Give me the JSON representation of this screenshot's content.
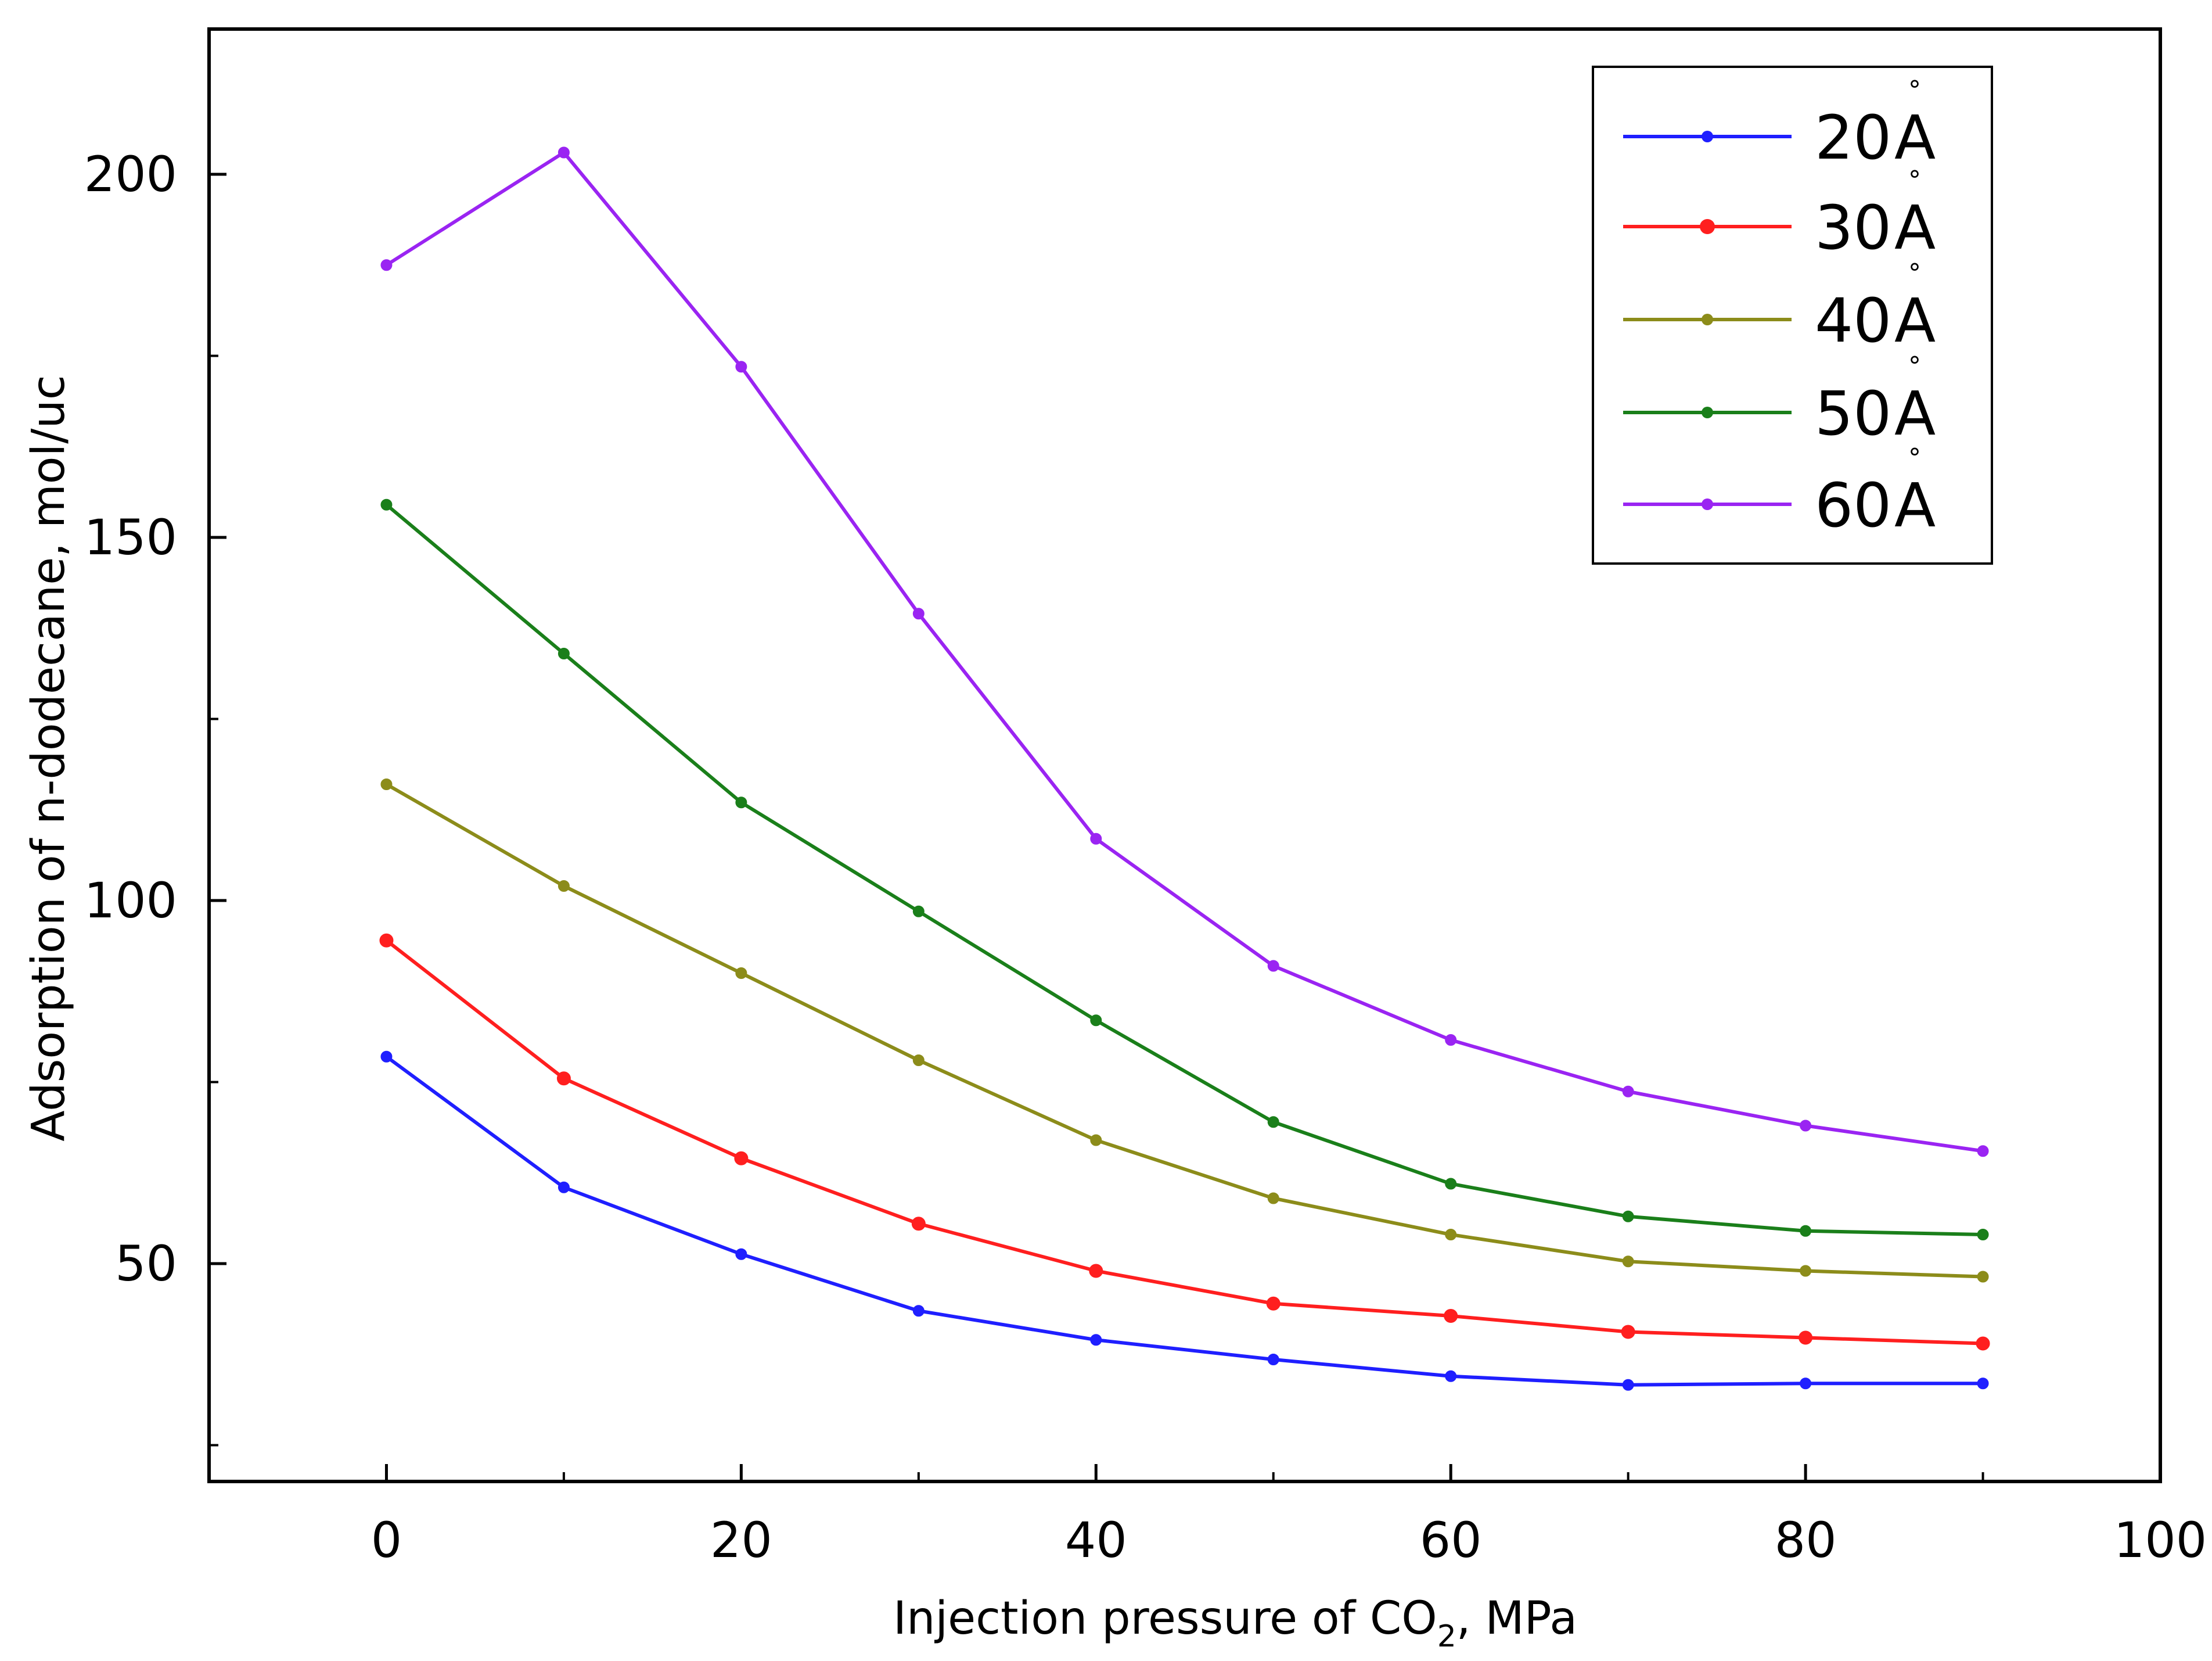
{
  "chart_data": {
    "type": "line",
    "title": "",
    "xlabel": "Injection pressure of CO",
    "xlabel_subscript": "2",
    "xlabel_suffix": ", MPa",
    "ylabel": "Adsorption of n-dodecane, mol/uc",
    "xlim": [
      -10,
      100
    ],
    "ylim": [
      20,
      220
    ],
    "x_ticks": [
      0,
      20,
      40,
      60,
      80,
      100
    ],
    "x_tick_labels": [
      "0",
      "20",
      "40",
      "60",
      "80",
      "100"
    ],
    "y_ticks": [
      50,
      100,
      150,
      200
    ],
    "y_tick_labels": [
      "50",
      "100",
      "150",
      "200"
    ],
    "grid": false,
    "legend_position": "top-right",
    "x": [
      0,
      10,
      20,
      30,
      40,
      50,
      60,
      70,
      80,
      90
    ],
    "series": [
      {
        "name": "20",
        "unit": "A",
        "unit_mark": "°",
        "color": "#1f1fff",
        "values": [
          78.5,
          60.5,
          51.3,
          43.5,
          39.5,
          36.8,
          34.5,
          33.3,
          33.5,
          33.5
        ]
      },
      {
        "name": "30",
        "unit": "A",
        "unit_mark": "°",
        "color": "#ff1f1f",
        "values": [
          94.5,
          75.5,
          64.5,
          55.5,
          49.0,
          44.5,
          42.8,
          40.6,
          39.8,
          39.0
        ]
      },
      {
        "name": "40",
        "unit": "A",
        "unit_mark": "°",
        "color": "#8c8c1a",
        "values": [
          116.0,
          102.0,
          90.0,
          78.0,
          67.0,
          59.0,
          54.0,
          50.3,
          49.0,
          48.2
        ]
      },
      {
        "name": "50",
        "unit": "A",
        "unit_mark": "°",
        "color": "#1a7f1a",
        "values": [
          154.5,
          134.0,
          113.5,
          98.5,
          83.5,
          69.5,
          61.0,
          56.5,
          54.5,
          54.0
        ]
      },
      {
        "name": "60",
        "unit": "A",
        "unit_mark": "°",
        "color": "#9a24f2",
        "values": [
          187.5,
          203.0,
          173.5,
          139.5,
          108.5,
          91.0,
          80.8,
          73.7,
          69.0,
          65.5
        ]
      }
    ]
  }
}
